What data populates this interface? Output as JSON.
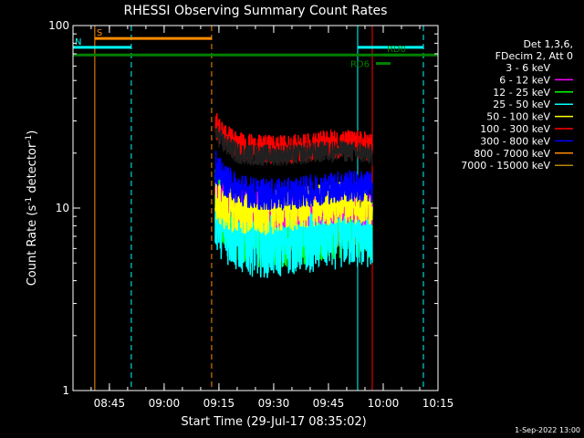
{
  "chart_data": {
    "type": "line",
    "title": "RHESSI Observing Summary Count Rates",
    "xlabel": "Start Time (29-Jul-17 08:35:02)",
    "ylabel_main": "Count Rate (s",
    "ylabel_sup1": "-1",
    "ylabel_mid": " detector",
    "ylabel_sup2": "-1",
    "ylabel_end": ")",
    "y_scale": "log",
    "ylim": [
      1,
      100
    ],
    "xlim": [
      "08:35:02",
      "10:15:00"
    ],
    "x_ticks": [
      "08:45",
      "09:00",
      "09:15",
      "09:30",
      "09:45",
      "10:00",
      "10:15"
    ],
    "y_ticks": [
      "1",
      "10",
      "100"
    ],
    "legend_header": [
      "Det 1,3,6,",
      "FDecim 2, Att 0"
    ],
    "legend_placement": "right",
    "legend_entries": [
      {
        "label": "3 - 6 keV",
        "color": "#000000"
      },
      {
        "label": "6 - 12 keV",
        "color": "#ff00ff"
      },
      {
        "label": "12 - 25 keV",
        "color": "#00ff00"
      },
      {
        "label": "25 - 50 keV",
        "color": "#00ffff"
      },
      {
        "label": "50 - 100 keV",
        "color": "#ffff00"
      },
      {
        "label": "100 - 300 keV",
        "color": "#ff0000"
      },
      {
        "label": "300 - 800 keV",
        "color": "#0000ff"
      },
      {
        "label": "800 - 7000 keV",
        "color": "#ff8c00"
      },
      {
        "label": "7000 - 15000 keV",
        "color": "#b8860b"
      }
    ],
    "series": [
      {
        "name": "3 - 6 keV",
        "color": "#000000",
        "start": "09:14",
        "end": "09:57",
        "x": [
          "09:14",
          "09:16",
          "09:20",
          "09:25",
          "09:30",
          "09:35",
          "09:40",
          "09:45",
          "09:50",
          "09:55",
          "09:57"
        ],
        "values": [
          26,
          23,
          20,
          19.5,
          19.5,
          19.5,
          20,
          20.5,
          20.5,
          20,
          19.5
        ]
      },
      {
        "name": "6 - 12 keV",
        "color": "#ff00ff",
        "start": "09:14",
        "end": "09:57",
        "x": [
          "09:14",
          "09:16",
          "09:20",
          "09:25",
          "09:30",
          "09:35",
          "09:40",
          "09:45",
          "09:50",
          "09:55",
          "09:57"
        ],
        "values": [
          13,
          11.5,
          10.5,
          10,
          9.8,
          9.8,
          10,
          10.2,
          10.3,
          10,
          10
        ]
      },
      {
        "name": "12 - 25 keV",
        "color": "#00ff00",
        "start": "09:14",
        "end": "09:57",
        "x": [
          "09:14",
          "09:16",
          "09:20",
          "09:25",
          "09:30",
          "09:35",
          "09:40",
          "09:45",
          "09:50",
          "09:55",
          "09:57"
        ],
        "values": [
          11.5,
          9,
          7.8,
          7.2,
          7,
          7.2,
          7.5,
          7.8,
          8,
          8,
          7.8
        ]
      },
      {
        "name": "25 - 50 keV",
        "color": "#00ffff",
        "start": "09:14",
        "end": "09:57",
        "x": [
          "09:14",
          "09:16",
          "09:20",
          "09:25",
          "09:30",
          "09:35",
          "09:40",
          "09:45",
          "09:50",
          "09:55",
          "09:57"
        ],
        "values": [
          9.5,
          8,
          7,
          6.6,
          6.5,
          6.8,
          7,
          7.2,
          7.4,
          7.3,
          7.2
        ]
      },
      {
        "name": "50 - 100 keV",
        "color": "#ffff00",
        "start": "09:14",
        "end": "09:57",
        "x": [
          "09:14",
          "09:16",
          "09:20",
          "09:25",
          "09:30",
          "09:35",
          "09:40",
          "09:45",
          "09:50",
          "09:55",
          "09:57"
        ],
        "values": [
          11,
          10,
          9.5,
          9.2,
          9.5,
          9.8,
          10.2,
          10.5,
          10.8,
          10.5,
          10.3
        ]
      },
      {
        "name": "100 - 300 keV",
        "color": "#ff0000",
        "start": "09:14",
        "end": "09:57",
        "x": [
          "09:14",
          "09:16",
          "09:20",
          "09:25",
          "09:30",
          "09:35",
          "09:40",
          "09:45",
          "09:50",
          "09:55",
          "09:57"
        ],
        "values": [
          29,
          25,
          22,
          21,
          21,
          21,
          21.5,
          22.5,
          22.5,
          22,
          21.5
        ]
      },
      {
        "name": "300 - 800 keV",
        "color": "#0000ff",
        "start": "09:14",
        "end": "09:57",
        "x": [
          "09:14",
          "09:16",
          "09:20",
          "09:25",
          "09:30",
          "09:35",
          "09:40",
          "09:45",
          "09:50",
          "09:55",
          "09:57"
        ],
        "values": [
          17,
          14.5,
          12.8,
          12,
          11.8,
          12,
          12.4,
          12.9,
          13.2,
          13.1,
          13
        ]
      },
      {
        "name": "800 - 7000 keV",
        "color": "#ff8c00",
        "start": "09:14",
        "end": "09:57",
        "x": [
          "09:14",
          "09:16",
          "09:20",
          "09:25",
          "09:30",
          "09:35",
          "09:40",
          "09:45",
          "09:50",
          "09:55",
          "09:57"
        ],
        "values": [
          10,
          8.8,
          8.2,
          8,
          7.9,
          7.9,
          8,
          8.1,
          8.2,
          8.1,
          8
        ]
      },
      {
        "name": "7000 - 15000 keV",
        "color": "#b8860b",
        "start": "09:14",
        "end": "09:57",
        "x": [
          "09:14",
          "09:16",
          "09:20",
          "09:25",
          "09:30",
          "09:35",
          "09:40",
          "09:45",
          "09:50",
          "09:55",
          "09:57"
        ],
        "values": [
          8.5,
          7.8,
          7.3,
          7.1,
          7,
          7,
          7.1,
          7.2,
          7.3,
          7.2,
          7.1
        ]
      }
    ],
    "vertical_markers": [
      {
        "time": "08:41",
        "color": "#ff8c00",
        "style": "solid"
      },
      {
        "time": "08:51",
        "color": "#00ffff",
        "style": "dashed"
      },
      {
        "time": "09:13",
        "color": "#ff8c00",
        "style": "dashed"
      },
      {
        "time": "09:53",
        "color": "#00ffff",
        "style": "solid"
      },
      {
        "time": "09:57",
        "color": "#ff0000",
        "style": "solid"
      },
      {
        "time": "10:11",
        "color": "#00ffff",
        "style": "dashed"
      }
    ],
    "flag_bars": [
      {
        "label": "S",
        "color": "#ff8c00",
        "start": "08:41",
        "end": "09:13",
        "level": 85
      },
      {
        "label": "N",
        "color": "#00ffff",
        "start": "08:35:02",
        "end": "08:51",
        "level": 76
      },
      {
        "label": "",
        "color": "#00ffff",
        "start": "09:53",
        "end": "10:11",
        "level": 76
      },
      {
        "label": "",
        "color": "#008000",
        "start": "08:35:02",
        "end": "10:15",
        "level": 69
      },
      {
        "label": "RD6",
        "color": "#008000",
        "start": "09:58",
        "end": "10:02",
        "level": 62
      },
      {
        "label": "RD0",
        "color": "#008000",
        "start": "10:00",
        "end": "10:05",
        "level": 69
      }
    ]
  },
  "footer_date": "1-Sep-2022 13:00"
}
